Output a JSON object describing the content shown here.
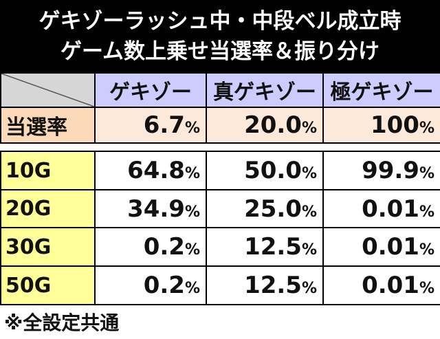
{
  "title": {
    "line1": "ゲキゾーラッシュ中・中段ベル成立時",
    "line2": "ゲーム数上乗せ当選率＆振り分け"
  },
  "columns": [
    "ゲキゾー",
    "真ゲキゾー",
    "極ゲキゾー"
  ],
  "rate_row": {
    "label": "当選率",
    "values": [
      "6.7",
      "20.0",
      "100"
    ]
  },
  "percent_sign": "%",
  "rows": [
    {
      "label": "10G",
      "values": [
        "64.8",
        "50.0",
        "99.9"
      ]
    },
    {
      "label": "20G",
      "values": [
        "34.9",
        "25.0",
        "0.01"
      ]
    },
    {
      "label": "30G",
      "values": [
        "0.2",
        "12.5",
        "0.01"
      ]
    },
    {
      "label": "50G",
      "values": [
        "0.2",
        "12.5",
        "0.01"
      ]
    }
  ],
  "footnote": "※全設定共通",
  "colors": {
    "title_bg": "#000000",
    "header_bg": "#ccccff",
    "rate_label_bg": "#fcd9b8",
    "rate_value_bg": "#fde9d9",
    "row_label_bg": "#ffff99",
    "corner_bg": "#d6d6d6"
  }
}
